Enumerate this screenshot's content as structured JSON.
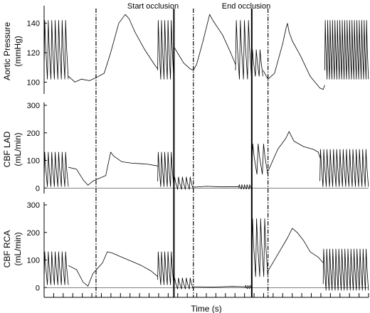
{
  "chart_data": {
    "type": "line",
    "x_label": "Time (s)",
    "annotations": [
      {
        "text": "Start occlusion",
        "at_marker": 3
      },
      {
        "text": "End occlusion",
        "at_marker": 5
      }
    ],
    "markers": [
      {
        "t": 0.16,
        "style": "dashdot"
      },
      {
        "t": 0.4,
        "style": "solid"
      },
      {
        "t": 0.46,
        "style": "dashdot"
      },
      {
        "t": 0.64,
        "style": "solid"
      },
      {
        "t": 0.69,
        "style": "dashdot"
      }
    ],
    "x_range": [
      0,
      1
    ],
    "x_minor_ticks_count": 34,
    "panels": [
      {
        "label_lines": [
          "Aortic Pressure",
          "(mmHg)"
        ],
        "ylim": [
          92,
          150
        ],
        "yticks": [
          100,
          120,
          140
        ],
        "zero_line": false,
        "segments": [
          {
            "kind": "beats",
            "t0": 0.0,
            "t1": 0.075,
            "n": 7,
            "lo": 102,
            "hi": 142
          },
          {
            "kind": "path",
            "points": [
              [
                0.075,
                104
              ],
              [
                0.095,
                100
              ],
              [
                0.115,
                102
              ],
              [
                0.14,
                101
              ],
              [
                0.16,
                103
              ],
              [
                0.185,
                106
              ],
              [
                0.205,
                120
              ],
              [
                0.23,
                140
              ],
              [
                0.25,
                146
              ],
              [
                0.262,
                143
              ],
              [
                0.28,
                134
              ],
              [
                0.31,
                122
              ],
              [
                0.34,
                112
              ],
              [
                0.35,
                109
              ]
            ]
          },
          {
            "kind": "beats",
            "t0": 0.35,
            "t1": 0.4,
            "n": 5,
            "lo": 102,
            "hi": 142
          },
          {
            "kind": "path",
            "points": [
              [
                0.4,
                124
              ],
              [
                0.43,
                113
              ],
              [
                0.45,
                109
              ],
              [
                0.46,
                108
              ],
              [
                0.47,
                112
              ],
              [
                0.49,
                128
              ],
              [
                0.51,
                146
              ],
              [
                0.52,
                142
              ],
              [
                0.55,
                132
              ],
              [
                0.575,
                120
              ],
              [
                0.59,
                112
              ]
            ]
          },
          {
            "kind": "beats",
            "t0": 0.59,
            "t1": 0.64,
            "n": 4,
            "lo": 102,
            "hi": 142
          },
          {
            "kind": "beats",
            "t0": 0.64,
            "t1": 0.675,
            "n": 3,
            "lo": 104,
            "hi": 122
          },
          {
            "kind": "path",
            "points": [
              [
                0.675,
                108
              ],
              [
                0.69,
                102
              ],
              [
                0.71,
                106
              ],
              [
                0.735,
                126
              ],
              [
                0.745,
                136
              ],
              [
                0.75,
                140
              ],
              [
                0.755,
                134
              ],
              [
                0.765,
                128
              ],
              [
                0.79,
                118
              ],
              [
                0.82,
                104
              ],
              [
                0.85,
                96
              ],
              [
                0.86,
                95
              ],
              [
                0.865,
                98
              ]
            ]
          },
          {
            "kind": "beats",
            "t0": 0.865,
            "t1": 1.0,
            "n": 18,
            "lo": 102,
            "hi": 142
          }
        ]
      },
      {
        "label_lines": [
          "CBF LAD",
          "(mL/min)"
        ],
        "ylim": [
          -20,
          300
        ],
        "yticks": [
          0,
          100,
          200,
          300
        ],
        "zero_line": true,
        "segments": [
          {
            "kind": "beats",
            "t0": 0.0,
            "t1": 0.075,
            "n": 7,
            "lo": 5,
            "hi": 130
          },
          {
            "kind": "path",
            "points": [
              [
                0.075,
                75
              ],
              [
                0.1,
                68
              ],
              [
                0.12,
                30
              ],
              [
                0.135,
                10
              ],
              [
                0.15,
                25
              ],
              [
                0.17,
                35
              ],
              [
                0.19,
                45
              ],
              [
                0.205,
                130
              ],
              [
                0.215,
                115
              ],
              [
                0.24,
                95
              ],
              [
                0.27,
                90
              ],
              [
                0.3,
                88
              ],
              [
                0.32,
                86
              ],
              [
                0.35,
                80
              ]
            ]
          },
          {
            "kind": "beats",
            "t0": 0.35,
            "t1": 0.4,
            "n": 5,
            "lo": 5,
            "hi": 130
          },
          {
            "kind": "beats",
            "t0": 0.4,
            "t1": 0.46,
            "n": 5,
            "lo": -5,
            "hi": 40
          },
          {
            "kind": "path",
            "points": [
              [
                0.46,
                3
              ],
              [
                0.5,
                6
              ],
              [
                0.55,
                4
              ],
              [
                0.6,
                5
              ]
            ]
          },
          {
            "kind": "beats",
            "t0": 0.6,
            "t1": 0.64,
            "n": 5,
            "lo": -4,
            "hi": 12
          },
          {
            "kind": "beats",
            "t0": 0.64,
            "t1": 0.69,
            "n": 3,
            "lo": 50,
            "hi": 160
          },
          {
            "kind": "path",
            "points": [
              [
                0.69,
                60
              ],
              [
                0.72,
                140
              ],
              [
                0.745,
                180
              ],
              [
                0.755,
                205
              ],
              [
                0.77,
                170
              ],
              [
                0.8,
                150
              ],
              [
                0.83,
                140
              ],
              [
                0.845,
                130
              ],
              [
                0.85,
                110
              ]
            ]
          },
          {
            "kind": "beats",
            "t0": 0.85,
            "t1": 1.0,
            "n": 15,
            "lo": 5,
            "hi": 140
          }
        ]
      },
      {
        "label_lines": [
          "CBF RCA",
          "(mL/min)"
        ],
        "ylim": [
          -20,
          300
        ],
        "yticks": [
          0,
          100,
          200,
          300
        ],
        "zero_line": true,
        "segments": [
          {
            "kind": "beats",
            "t0": 0.0,
            "t1": 0.075,
            "n": 7,
            "lo": 10,
            "hi": 130
          },
          {
            "kind": "path",
            "points": [
              [
                0.075,
                80
              ],
              [
                0.1,
                65
              ],
              [
                0.12,
                20
              ],
              [
                0.135,
                5
              ],
              [
                0.15,
                50
              ],
              [
                0.18,
                90
              ],
              [
                0.195,
                130
              ],
              [
                0.21,
                125
              ],
              [
                0.24,
                110
              ],
              [
                0.27,
                95
              ],
              [
                0.3,
                80
              ],
              [
                0.33,
                60
              ],
              [
                0.35,
                40
              ]
            ]
          },
          {
            "kind": "beats",
            "t0": 0.35,
            "t1": 0.4,
            "n": 5,
            "lo": 10,
            "hi": 130
          },
          {
            "kind": "beats",
            "t0": 0.4,
            "t1": 0.46,
            "n": 5,
            "lo": -5,
            "hi": 35
          },
          {
            "kind": "path",
            "points": [
              [
                0.46,
                3
              ],
              [
                0.52,
                2
              ],
              [
                0.58,
                4
              ],
              [
                0.62,
                3
              ]
            ]
          },
          {
            "kind": "beats",
            "t0": 0.62,
            "t1": 0.64,
            "n": 3,
            "lo": -4,
            "hi": 8
          },
          {
            "kind": "beats",
            "t0": 0.64,
            "t1": 0.69,
            "n": 4,
            "lo": 40,
            "hi": 250
          },
          {
            "kind": "path",
            "points": [
              [
                0.69,
                60
              ],
              [
                0.72,
                120
              ],
              [
                0.75,
                180
              ],
              [
                0.765,
                215
              ],
              [
                0.78,
                200
              ],
              [
                0.8,
                170
              ],
              [
                0.82,
                130
              ],
              [
                0.845,
                110
              ],
              [
                0.86,
                90
              ]
            ]
          },
          {
            "kind": "beats",
            "t0": 0.86,
            "t1": 1.0,
            "n": 15,
            "lo": -10,
            "hi": 140
          }
        ]
      }
    ]
  }
}
